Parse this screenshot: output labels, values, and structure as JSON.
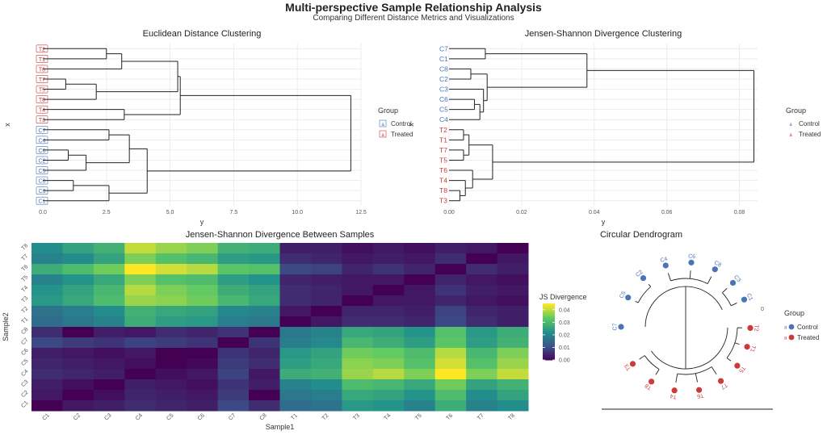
{
  "title": "Multi-perspective Sample Relationship Analysis",
  "subtitle": "Comparing Different Distance Metrics and Visualizations",
  "colors": {
    "control": "#4a75b5",
    "treated": "#cc3b3b",
    "grid": "#ececec",
    "line": "#222222"
  },
  "chart_data": [
    {
      "type": "dendrogram",
      "title": "Euclidean Distance Clustering",
      "xlabel": "y",
      "ylabel": "x",
      "xlim": [
        0,
        12.5
      ],
      "xticks": [
        "0.0",
        "2.5",
        "5.0",
        "7.5",
        "10.0",
        "12.5"
      ],
      "leaves": [
        {
          "label": "T2",
          "group": "Treated"
        },
        {
          "label": "T1",
          "group": "Treated"
        },
        {
          "label": "T6",
          "group": "Treated"
        },
        {
          "label": "T7",
          "group": "Treated"
        },
        {
          "label": "T5",
          "group": "Treated"
        },
        {
          "label": "T8",
          "group": "Treated"
        },
        {
          "label": "T4",
          "group": "Treated"
        },
        {
          "label": "T3",
          "group": "Treated"
        },
        {
          "label": "C7",
          "group": "Control"
        },
        {
          "label": "C4",
          "group": "Control"
        },
        {
          "label": "C6",
          "group": "Control"
        },
        {
          "label": "C2",
          "group": "Control"
        },
        {
          "label": "C5",
          "group": "Control"
        },
        {
          "label": "C8",
          "group": "Control"
        },
        {
          "label": "C3",
          "group": "Control"
        },
        {
          "label": "C1",
          "group": "Control"
        }
      ],
      "merges": [
        {
          "members": [
            "T2",
            "T1"
          ],
          "height": 2.5
        },
        {
          "members": [
            "T2",
            "T1",
            "T6"
          ],
          "height": 3.1
        },
        {
          "members": [
            "T7",
            "T5"
          ],
          "height": 0.9
        },
        {
          "members": [
            "T7",
            "T5",
            "T8"
          ],
          "height": 2.1
        },
        {
          "members": [
            "T2",
            "T1",
            "T6",
            "T7",
            "T5",
            "T8"
          ],
          "height": 5.3
        },
        {
          "members": [
            "T4",
            "T3"
          ],
          "height": 3.2
        },
        {
          "members": [
            "T2",
            "T1",
            "T6",
            "T7",
            "T5",
            "T8",
            "T4",
            "T3"
          ],
          "height": 5.4
        },
        {
          "members": [
            "C7",
            "C4"
          ],
          "height": 2.6
        },
        {
          "members": [
            "C6",
            "C2"
          ],
          "height": 1.0
        },
        {
          "members": [
            "C6",
            "C2",
            "C5"
          ],
          "height": 1.7
        },
        {
          "members": [
            "C7",
            "C4",
            "C6",
            "C2",
            "C5"
          ],
          "height": 3.4
        },
        {
          "members": [
            "C8",
            "C3"
          ],
          "height": 1.2
        },
        {
          "members": [
            "C8",
            "C3",
            "C1"
          ],
          "height": 2.6
        },
        {
          "members": [
            "C7",
            "C4",
            "C6",
            "C2",
            "C5",
            "C8",
            "C3",
            "C1"
          ],
          "height": 4.1
        },
        {
          "members": [
            "ALL"
          ],
          "height": 12.1
        }
      ],
      "legend": {
        "title": "Group",
        "items": [
          "Control",
          "Treated"
        ],
        "position": "right"
      }
    },
    {
      "type": "dendrogram",
      "title": "Jensen-Shannon Divergence Clustering",
      "xlabel": "y",
      "ylabel": "x",
      "xlim": [
        0,
        0.085
      ],
      "xticks": [
        "0.00",
        "0.02",
        "0.04",
        "0.06",
        "0.08"
      ],
      "leaves": [
        {
          "label": "C7",
          "group": "Control"
        },
        {
          "label": "C1",
          "group": "Control"
        },
        {
          "label": "C8",
          "group": "Control"
        },
        {
          "label": "C2",
          "group": "Control"
        },
        {
          "label": "C3",
          "group": "Control"
        },
        {
          "label": "C6",
          "group": "Control"
        },
        {
          "label": "C5",
          "group": "Control"
        },
        {
          "label": "C4",
          "group": "Control"
        },
        {
          "label": "T2",
          "group": "Treated"
        },
        {
          "label": "T1",
          "group": "Treated"
        },
        {
          "label": "T7",
          "group": "Treated"
        },
        {
          "label": "T5",
          "group": "Treated"
        },
        {
          "label": "T6",
          "group": "Treated"
        },
        {
          "label": "T4",
          "group": "Treated"
        },
        {
          "label": "T8",
          "group": "Treated"
        },
        {
          "label": "T3",
          "group": "Treated"
        }
      ],
      "merges": [
        {
          "members": [
            "C7",
            "C1"
          ],
          "height": 0.01
        },
        {
          "members": [
            "C8",
            "C2"
          ],
          "height": 0.006
        },
        {
          "members": [
            "C6",
            "C5"
          ],
          "height": 0.007
        },
        {
          "members": [
            "C6",
            "C5",
            "C4"
          ],
          "height": 0.0085
        },
        {
          "members": [
            "C3",
            "C6",
            "C5",
            "C4"
          ],
          "height": 0.0095
        },
        {
          "members": [
            "C8",
            "C2",
            "C3",
            "C6",
            "C5",
            "C4"
          ],
          "height": 0.0105
        },
        {
          "members": [
            "C7",
            "C1",
            "C8",
            "C2",
            "C3",
            "C6",
            "C5",
            "C4"
          ],
          "height": 0.038
        },
        {
          "members": [
            "T2",
            "T1"
          ],
          "height": 0.004
        },
        {
          "members": [
            "T7",
            "T5"
          ],
          "height": 0.004
        },
        {
          "members": [
            "T2",
            "T1",
            "T7",
            "T5"
          ],
          "height": 0.0055
        },
        {
          "members": [
            "T8",
            "T3"
          ],
          "height": 0.003
        },
        {
          "members": [
            "T4",
            "T8",
            "T3"
          ],
          "height": 0.0045
        },
        {
          "members": [
            "T6",
            "T4",
            "T8",
            "T3"
          ],
          "height": 0.0065
        },
        {
          "members": [
            "T2",
            "T1",
            "T7",
            "T5",
            "T6",
            "T4",
            "T8",
            "T3"
          ],
          "height": 0.012
        },
        {
          "members": [
            "ALL"
          ],
          "height": 0.084
        }
      ],
      "legend": {
        "title": "Group",
        "items": [
          "Control",
          "Treated"
        ],
        "position": "right"
      }
    },
    {
      "type": "heatmap",
      "title": "Jensen-Shannon Divergence Between Samples",
      "xlabel": "Sample1",
      "ylabel": "Sample2",
      "columns": [
        "C1",
        "C2",
        "C3",
        "C4",
        "C5",
        "C6",
        "C7",
        "C8",
        "T1",
        "T2",
        "T3",
        "T4",
        "T5",
        "T6",
        "T7",
        "T8"
      ],
      "rows": [
        "T8",
        "T7",
        "T6",
        "T5",
        "T4",
        "T3",
        "T2",
        "T1",
        "C8",
        "C7",
        "C6",
        "C5",
        "C4",
        "C3",
        "C2",
        "C1"
      ],
      "values": [
        [
          0.022,
          0.026,
          0.029,
          0.041,
          0.038,
          0.036,
          0.029,
          0.028,
          0.004,
          0.004,
          0.002,
          0.003,
          0.002,
          0.004,
          0.003,
          0.0
        ],
        [
          0.02,
          0.022,
          0.026,
          0.036,
          0.032,
          0.03,
          0.025,
          0.024,
          0.006,
          0.005,
          0.003,
          0.004,
          0.003,
          0.006,
          0.0,
          0.003
        ],
        [
          0.028,
          0.031,
          0.035,
          0.046,
          0.042,
          0.04,
          0.033,
          0.032,
          0.01,
          0.009,
          0.005,
          0.007,
          0.005,
          0.0,
          0.006,
          0.004
        ],
        [
          0.02,
          0.023,
          0.027,
          0.036,
          0.032,
          0.031,
          0.025,
          0.023,
          0.005,
          0.004,
          0.003,
          0.003,
          0.0,
          0.005,
          0.003,
          0.002
        ],
        [
          0.023,
          0.026,
          0.03,
          0.04,
          0.036,
          0.034,
          0.028,
          0.026,
          0.006,
          0.005,
          0.003,
          0.0,
          0.003,
          0.007,
          0.004,
          0.003
        ],
        [
          0.024,
          0.027,
          0.031,
          0.038,
          0.037,
          0.035,
          0.03,
          0.027,
          0.006,
          0.005,
          0.0,
          0.003,
          0.003,
          0.005,
          0.003,
          0.002
        ],
        [
          0.017,
          0.019,
          0.022,
          0.029,
          0.027,
          0.026,
          0.021,
          0.02,
          0.003,
          0.0,
          0.005,
          0.005,
          0.004,
          0.009,
          0.005,
          0.004
        ],
        [
          0.016,
          0.018,
          0.02,
          0.028,
          0.025,
          0.024,
          0.019,
          0.018,
          0.0,
          0.003,
          0.006,
          0.006,
          0.005,
          0.01,
          0.006,
          0.004
        ],
        [
          0.006,
          0.0,
          0.004,
          0.003,
          0.006,
          0.005,
          0.007,
          0.0,
          0.018,
          0.02,
          0.027,
          0.026,
          0.023,
          0.032,
          0.024,
          0.028
        ],
        [
          0.01,
          0.008,
          0.007,
          0.009,
          0.008,
          0.007,
          0.0,
          0.007,
          0.019,
          0.021,
          0.03,
          0.028,
          0.025,
          0.033,
          0.025,
          0.029
        ],
        [
          0.004,
          0.003,
          0.002,
          0.003,
          0.0,
          0.0,
          0.007,
          0.005,
          0.024,
          0.026,
          0.035,
          0.034,
          0.031,
          0.04,
          0.03,
          0.036
        ],
        [
          0.005,
          0.004,
          0.003,
          0.002,
          0.0,
          0.001,
          0.008,
          0.006,
          0.025,
          0.027,
          0.037,
          0.036,
          0.032,
          0.042,
          0.032,
          0.038
        ],
        [
          0.006,
          0.005,
          0.004,
          0.0,
          0.002,
          0.003,
          0.009,
          0.003,
          0.028,
          0.029,
          0.038,
          0.04,
          0.036,
          0.046,
          0.036,
          0.041
        ],
        [
          0.004,
          0.002,
          0.0,
          0.004,
          0.003,
          0.002,
          0.007,
          0.004,
          0.02,
          0.022,
          0.031,
          0.03,
          0.027,
          0.035,
          0.026,
          0.029
        ],
        [
          0.003,
          0.0,
          0.002,
          0.005,
          0.004,
          0.003,
          0.008,
          0.0,
          0.018,
          0.019,
          0.027,
          0.026,
          0.023,
          0.031,
          0.022,
          0.026
        ],
        [
          0.0,
          0.003,
          0.004,
          0.006,
          0.005,
          0.004,
          0.01,
          0.006,
          0.016,
          0.017,
          0.024,
          0.023,
          0.02,
          0.028,
          0.02,
          0.022
        ]
      ],
      "colorbar": {
        "title": "JS Divergence",
        "range": [
          0,
          0.045
        ],
        "ticks": [
          "0.00",
          "0.01",
          "0.02",
          "0.03",
          "0.04"
        ]
      }
    },
    {
      "type": "circular-dendrogram",
      "title": "Circular Dendrogram",
      "center_label": "0",
      "leaves": [
        {
          "label": "C1",
          "group": "Control"
        },
        {
          "label": "C3",
          "group": "Control"
        },
        {
          "label": "C8",
          "group": "Control"
        },
        {
          "label": "C6",
          "group": "Control"
        },
        {
          "label": "C4",
          "group": "Control"
        },
        {
          "label": "C2",
          "group": "Control"
        },
        {
          "label": "C5",
          "group": "Control"
        },
        {
          "label": "C7",
          "group": "Control"
        },
        {
          "label": "T3",
          "group": "Treated"
        },
        {
          "label": "T8",
          "group": "Treated"
        },
        {
          "label": "T4",
          "group": "Treated"
        },
        {
          "label": "T6",
          "group": "Treated"
        },
        {
          "label": "T7",
          "group": "Treated"
        },
        {
          "label": "T5",
          "group": "Treated"
        },
        {
          "label": "T1",
          "group": "Treated"
        },
        {
          "label": "T2",
          "group": "Treated"
        }
      ],
      "legend": {
        "title": "Group",
        "items": [
          "Control",
          "Treated"
        ],
        "position": "right"
      }
    }
  ]
}
